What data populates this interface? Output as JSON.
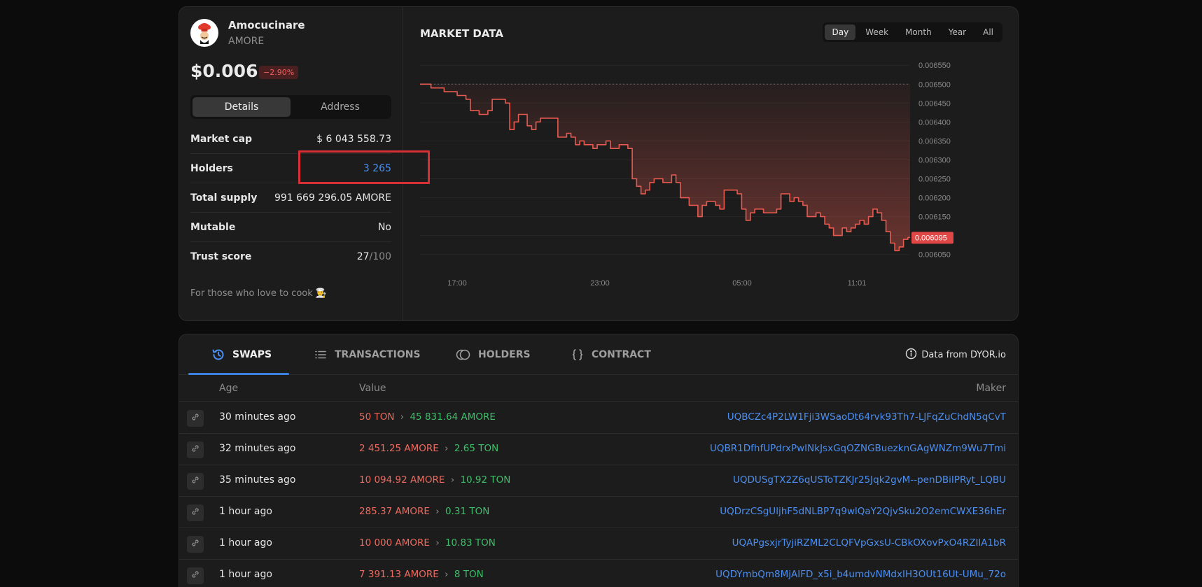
{
  "token": {
    "name": "Amocucinare",
    "symbol": "AMORE",
    "price": "$0.006",
    "change": "−2.90%",
    "tabs": [
      "Details",
      "Address"
    ],
    "stats": [
      {
        "label": "Market cap",
        "value": "$ 6 043 558.73"
      },
      {
        "label": "Holders",
        "value": "3 265"
      },
      {
        "label": "Total supply",
        "value": "991 669 296.05 AMORE"
      },
      {
        "label": "Mutable",
        "value": "No"
      },
      {
        "label": "Trust score",
        "value": "27",
        "suffix": "/100"
      }
    ],
    "description": "For those who love to cook 👨‍🍳"
  },
  "market": {
    "title": "MARKET DATA",
    "ranges": [
      "Day",
      "Week",
      "Month",
      "Year",
      "All"
    ],
    "active_range": "Day"
  },
  "chart_data": {
    "type": "area",
    "title": "MARKET DATA",
    "xlabel": "",
    "ylabel": "",
    "x_ticks": [
      "17:00",
      "23:00",
      "05:00",
      "11:01"
    ],
    "y_ticks": [
      0.00655,
      0.0065,
      0.00645,
      0.0064,
      0.00635,
      0.0063,
      0.00625,
      0.0062,
      0.00615,
      0.0061,
      0.00605
    ],
    "y_tick_labels": [
      "0.006550",
      "0.006500",
      "0.006450",
      "0.006400",
      "0.006350",
      "0.006300",
      "0.006250",
      "0.006200",
      "0.006150",
      "0.006100",
      "0.006050"
    ],
    "ylim": [
      0.00603,
      0.00656
    ],
    "start_value": 0.0065,
    "current_value": 0.006095,
    "current_label": "0.006095",
    "color": "#e85a4f",
    "values": [
      0.0065,
      0.0065,
      0.0065,
      0.00649,
      0.00649,
      0.00649,
      0.00648,
      0.00648,
      0.00648,
      0.00647,
      0.00647,
      0.00646,
      0.00643,
      0.00643,
      0.00642,
      0.00642,
      0.00643,
      0.00646,
      0.00646,
      0.00646,
      0.00645,
      0.00638,
      0.0064,
      0.00642,
      0.00642,
      0.00639,
      0.00638,
      0.0064,
      0.00641,
      0.00641,
      0.00641,
      0.00641,
      0.00636,
      0.00636,
      0.00637,
      0.00636,
      0.00634,
      0.00635,
      0.00634,
      0.00634,
      0.00633,
      0.00634,
      0.00634,
      0.00635,
      0.00633,
      0.00633,
      0.00634,
      0.00634,
      0.00633,
      0.00625,
      0.00623,
      0.00621,
      0.00622,
      0.00624,
      0.00625,
      0.00625,
      0.00624,
      0.00624,
      0.00626,
      0.00624,
      0.0062,
      0.0062,
      0.00618,
      0.00618,
      0.00615,
      0.00618,
      0.00619,
      0.00619,
      0.00618,
      0.00617,
      0.00622,
      0.00622,
      0.00622,
      0.00621,
      0.00617,
      0.00614,
      0.00616,
      0.00617,
      0.00617,
      0.00616,
      0.00616,
      0.00616,
      0.00617,
      0.00621,
      0.00621,
      0.00619,
      0.0062,
      0.00619,
      0.00618,
      0.00615,
      0.00615,
      0.00616,
      0.00615,
      0.00613,
      0.00612,
      0.0061,
      0.0061,
      0.00612,
      0.00611,
      0.00612,
      0.00613,
      0.00614,
      0.00613,
      0.00615,
      0.00617,
      0.00616,
      0.00614,
      0.00611,
      0.00608,
      0.00606,
      0.00607,
      0.00609,
      0.006095
    ]
  },
  "swaps": {
    "tabs": [
      {
        "label": "SWAPS",
        "icon": "history-icon"
      },
      {
        "label": "TRANSACTIONS",
        "icon": "list-icon"
      },
      {
        "label": "HOLDERS",
        "icon": "coins-icon"
      },
      {
        "label": "CONTRACT",
        "icon": "braces-icon"
      }
    ],
    "data_source": "Data from DYOR.io",
    "columns": [
      "Age",
      "Value",
      "Maker"
    ],
    "rows": [
      {
        "age": "30 minutes ago",
        "in_amount": "50",
        "in_token": "TON",
        "out_amount": "45 831.64",
        "out_token": "AMORE",
        "maker": "UQBCZc4P2LW1Fji3WSaoDt64rvk93Th7-LJFqZuChdN5qCvT"
      },
      {
        "age": "32 minutes ago",
        "in_amount": "2 451.25",
        "in_token": "AMORE",
        "out_amount": "2.65",
        "out_token": "TON",
        "maker": "UQBR1DfhfUPdrxPwINkJsxGqOZNGBuezknGAgWNZm9Wu7Tmi"
      },
      {
        "age": "35 minutes ago",
        "in_amount": "10 094.92",
        "in_token": "AMORE",
        "out_amount": "10.92",
        "out_token": "TON",
        "maker": "UQDUSgTX2Z6qUSToTZKJr25Jqk2gvM--penDBiIPRyt_LQBU"
      },
      {
        "age": "1 hour ago",
        "in_amount": "285.37",
        "in_token": "AMORE",
        "out_amount": "0.31",
        "out_token": "TON",
        "maker": "UQDrzCSgUljhF5dNLBP7q9wlQaY2QjvSku2O2emCWXE36hEr"
      },
      {
        "age": "1 hour ago",
        "in_amount": "10 000",
        "in_token": "AMORE",
        "out_amount": "10.83",
        "out_token": "TON",
        "maker": "UQAPgsxjrTyjiRZML2CLQFVpGxsU-CBkOXovPxO4RZIlA1bR"
      },
      {
        "age": "1 hour ago",
        "in_amount": "7 391.13",
        "in_token": "AMORE",
        "out_amount": "8",
        "out_token": "TON",
        "maker": "UQDYmbQm8MjAIFD_x5i_b4umdvNMdxIH3OUt16Ut-UMu_72o"
      }
    ]
  }
}
